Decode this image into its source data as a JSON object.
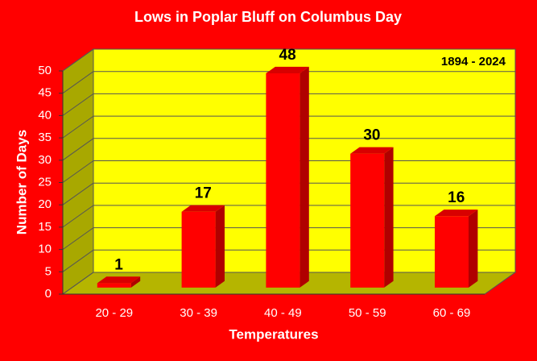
{
  "chart_data": {
    "type": "bar3d",
    "title": "Lows in Poplar Bluff on Columbus Day",
    "annotation": "1894 - 2024",
    "x_label": "Temperatures",
    "y_label": "Number of Days",
    "categories": [
      "20 - 29",
      "30 - 39",
      "40 - 49",
      "50 - 59",
      "60 - 69"
    ],
    "values": [
      1,
      17,
      48,
      30,
      16
    ],
    "color": "#ff0000",
    "ylim": [
      0,
      50
    ],
    "yticks": [
      0,
      5,
      10,
      15,
      20,
      25,
      30,
      35,
      40,
      45,
      50
    ],
    "grid": true
  }
}
